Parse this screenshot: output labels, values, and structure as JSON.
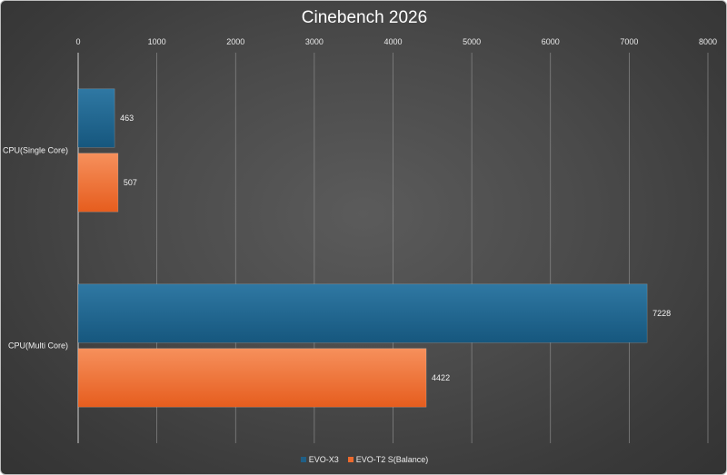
{
  "chart_data": {
    "type": "bar",
    "orientation": "horizontal",
    "title": "Cinebench 2026",
    "categories": [
      "CPU(Single Core)",
      "CPU(Multi Core)"
    ],
    "series": [
      {
        "name": "EVO-X3",
        "values": [
          463,
          7228
        ],
        "color": "#1f5f86"
      },
      {
        "name": "EVO-T2 S(Balance)",
        "values": [
          507,
          4422
        ],
        "color": "#ee6a2d"
      }
    ],
    "xlim": [
      0,
      8000
    ],
    "xticks": [
      0,
      1000,
      2000,
      3000,
      4000,
      5000,
      6000,
      7000,
      8000
    ],
    "x_axis_position": "top",
    "grid": true,
    "data_labels": true,
    "legend_position": "bottom"
  }
}
